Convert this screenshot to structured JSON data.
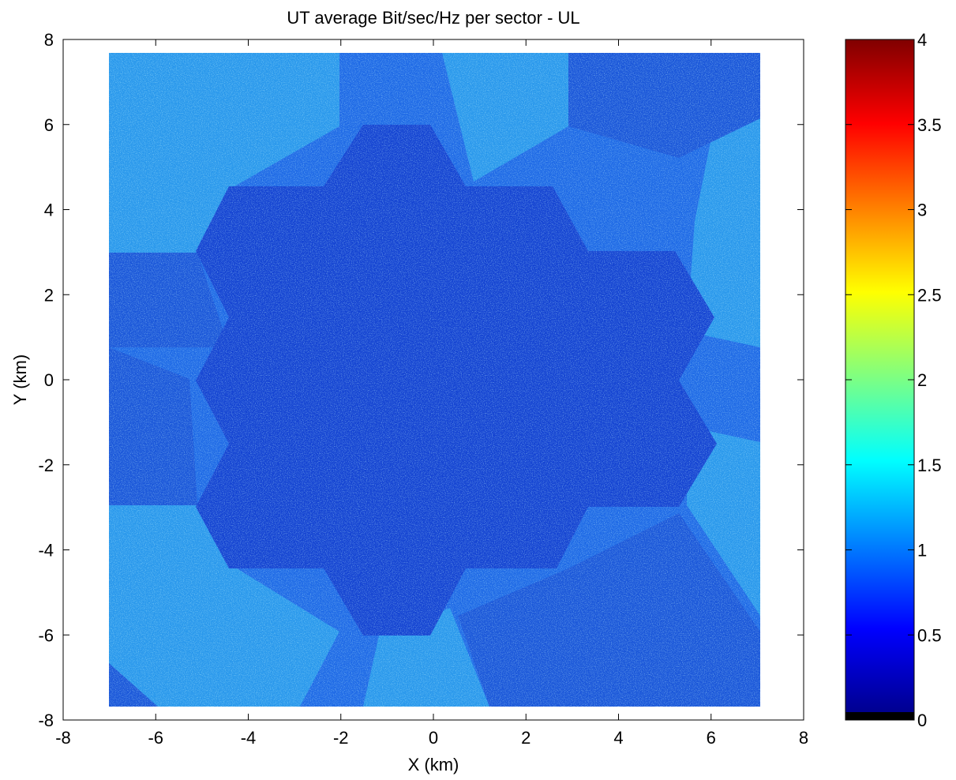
{
  "chart_data": {
    "type": "heatmap",
    "title": "UT average Bit/sec/Hz per sector - UL",
    "xlabel": "X (km)",
    "ylabel": "Y (km)",
    "xlim": [
      -8,
      8
    ],
    "ylim": [
      -8,
      8
    ],
    "x_ticks": [
      "-8",
      "-6",
      "-4",
      "-2",
      "0",
      "2",
      "4",
      "6",
      "8"
    ],
    "y_ticks": [
      "8",
      "6",
      "4",
      "2",
      "0",
      "-2",
      "-4",
      "-6",
      "-8"
    ],
    "data_extent": {
      "x": [
        -7,
        7.1
      ],
      "y": [
        -7.7,
        7.7
      ]
    },
    "grid": false,
    "colormap": "jet",
    "colorbar": {
      "range": [
        0,
        4
      ],
      "ticks": [
        "4",
        "3.5",
        "3",
        "2.5",
        "2",
        "1.5",
        "1",
        "0.5",
        "0"
      ]
    },
    "regions": [
      {
        "name": "inner cluster (7 hexagons)",
        "approx_value": 0.3
      },
      {
        "name": "outer ring, hexagon edges",
        "approx_value": 1.1
      },
      {
        "name": "outer ring, far corners",
        "approx_value": 0.55
      }
    ]
  }
}
